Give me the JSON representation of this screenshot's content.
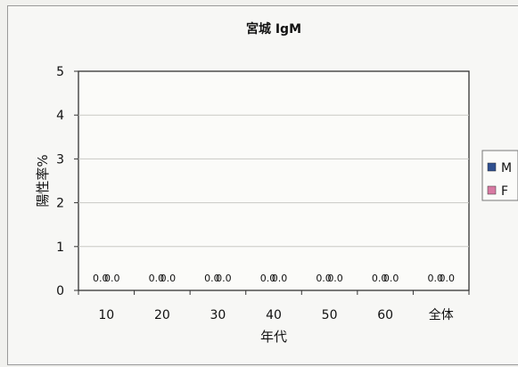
{
  "chart_data": {
    "type": "bar",
    "title": "宮城 IgM",
    "xlabel": "年代",
    "ylabel": "陽性率%",
    "categories": [
      "10",
      "20",
      "30",
      "40",
      "50",
      "60",
      "全体"
    ],
    "series": [
      {
        "name": "M",
        "color": "#2f4f8f",
        "values": [
          0.0,
          0.0,
          0.0,
          0.0,
          0.0,
          0.0,
          0.0
        ]
      },
      {
        "name": "F",
        "color": "#d87aa3",
        "values": [
          0.0,
          0.0,
          0.0,
          0.0,
          0.0,
          0.0,
          0.0
        ]
      }
    ],
    "value_labels": [
      [
        "0.0",
        "0.0"
      ],
      [
        "0.0",
        "0.0"
      ],
      [
        "0.0",
        "0.0"
      ],
      [
        "0.0",
        "0.0"
      ],
      [
        "0.0",
        "0.0"
      ],
      [
        "0.0",
        "0.0"
      ],
      [
        "0.0",
        "0.0"
      ]
    ],
    "ylim": [
      0,
      5
    ],
    "yticks": [
      "0",
      "1",
      "2",
      "3",
      "4",
      "5"
    ],
    "grid": true,
    "legend": "right"
  }
}
